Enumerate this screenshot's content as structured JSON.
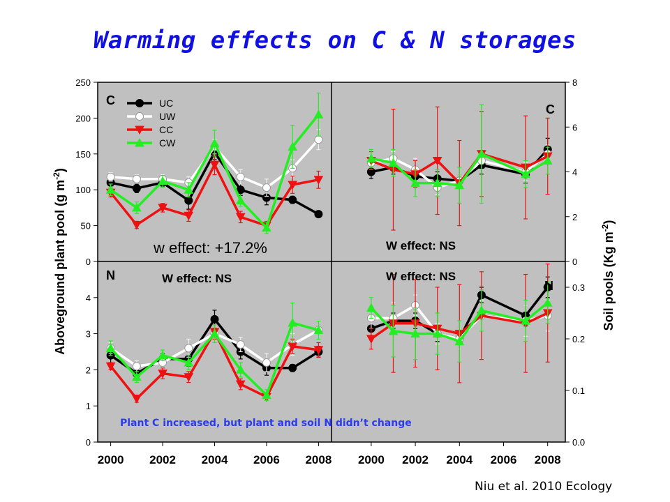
{
  "slide": {
    "title": "Warming effects on C & N storages",
    "citation": "Niu et al. 2010 Ecology",
    "note": "Plant C increased, but plant and soil N didn’t change"
  },
  "colors": {
    "UC": "#000000",
    "UW": "#ffffff",
    "CC": "#ee1111",
    "CW": "#22ee22",
    "panel_bg": "#c0c0c0",
    "title": "#1010e0",
    "note": "#2b3cf0"
  },
  "axes": {
    "left_label": "Aboveground plant pool (g m-2)",
    "right_label": "Soil pools (Kg m-2)",
    "left_top_ticks": [
      "250",
      "200",
      "150",
      "100",
      "50",
      "0"
    ],
    "left_bottom_ticks": [
      "4",
      "3",
      "2",
      "1",
      "0"
    ],
    "right_top_ticks": [
      "8",
      "6",
      "4",
      "2",
      "0"
    ],
    "right_bottom_ticks": [
      "0.3",
      "0.2",
      "0.1",
      "0.0"
    ],
    "x_ticks_left": [
      "2000",
      "2002",
      "2004",
      "2006",
      "2008"
    ],
    "x_ticks_right": [
      "2000",
      "2002",
      "2004",
      "2006",
      "2008"
    ]
  },
  "chart_data": [
    {
      "panel": "top-left",
      "type": "line",
      "label": "C",
      "annotation": "w effect: +17.2%",
      "legend": [
        "UC",
        "UW",
        "CC",
        "CW"
      ],
      "legend_position": "top-left",
      "x": [
        2000,
        2001,
        2002,
        2003,
        2004,
        2005,
        2006,
        2007,
        2008
      ],
      "ylim": [
        0,
        250
      ],
      "series": [
        {
          "name": "UC",
          "values": [
            110,
            102,
            110,
            85,
            152,
            100,
            89,
            86,
            66
          ],
          "errors": [
            8,
            6,
            6,
            12,
            10,
            8,
            10,
            5,
            4
          ]
        },
        {
          "name": "UW",
          "values": [
            118,
            115,
            115,
            110,
            160,
            118,
            103,
            130,
            170
          ],
          "errors": [
            6,
            6,
            6,
            8,
            10,
            10,
            12,
            12,
            14
          ]
        },
        {
          "name": "CC",
          "values": [
            96,
            51,
            75,
            64,
            135,
            62,
            50,
            107,
            114
          ],
          "errors": [
            6,
            5,
            6,
            8,
            14,
            8,
            6,
            12,
            12
          ]
        },
        {
          "name": "CW",
          "values": [
            100,
            75,
            112,
            100,
            165,
            85,
            47,
            160,
            205
          ],
          "errors": [
            8,
            8,
            8,
            10,
            18,
            8,
            8,
            30,
            30
          ]
        }
      ]
    },
    {
      "panel": "top-right",
      "type": "line",
      "label": "C",
      "annotation": "W effect: NS",
      "x": [
        2000,
        2001,
        2002,
        2003,
        2004,
        2005,
        2007,
        2008
      ],
      "ylim": [
        0,
        8
      ],
      "series": [
        {
          "name": "UC",
          "values": [
            4.0,
            4.2,
            3.8,
            3.7,
            3.6,
            4.3,
            3.9,
            5.0
          ],
          "errors": [
            0.3,
            0.3,
            0.3,
            0.3,
            0.3,
            0.4,
            0.4,
            0.5
          ]
        },
        {
          "name": "UW",
          "values": [
            4.4,
            4.6,
            4.1,
            3.3,
            3.6,
            4.5,
            4.0,
            4.8
          ],
          "errors": [
            0.3,
            0.3,
            0.5,
            0.3,
            0.3,
            0.4,
            0.4,
            0.4
          ]
        },
        {
          "name": "CC",
          "values": [
            4.5,
            4.1,
            3.9,
            4.5,
            3.5,
            4.8,
            4.2,
            4.7
          ],
          "errors": [
            0.4,
            2.7,
            0.6,
            2.4,
            1.9,
            1.9,
            2.3,
            1.7
          ]
        },
        {
          "name": "CW",
          "values": [
            4.6,
            4.4,
            3.5,
            3.5,
            3.4,
            4.8,
            3.9,
            4.5
          ],
          "errors": [
            0.4,
            0.6,
            0.6,
            0.6,
            0.8,
            2.2,
            0.6,
            0.6
          ]
        }
      ]
    },
    {
      "panel": "bottom-left",
      "type": "line",
      "label": "N",
      "annotation": "W effect: NS",
      "x": [
        2000,
        2001,
        2002,
        2003,
        2004,
        2005,
        2006,
        2007,
        2008
      ],
      "ylim": [
        0,
        5
      ],
      "series": [
        {
          "name": "UC",
          "values": [
            2.4,
            1.9,
            2.3,
            2.3,
            3.4,
            2.5,
            2.05,
            2.05,
            2.5
          ],
          "errors": [
            0.2,
            0.15,
            0.15,
            0.2,
            0.25,
            0.2,
            0.2,
            0.1,
            0.15
          ]
        },
        {
          "name": "UW",
          "values": [
            2.6,
            2.1,
            2.2,
            2.6,
            3.0,
            2.7,
            2.2,
            2.7,
            3.1
          ],
          "errors": [
            0.15,
            0.15,
            0.15,
            0.25,
            0.25,
            0.2,
            0.25,
            0.3,
            0.25
          ]
        },
        {
          "name": "CC",
          "values": [
            2.1,
            1.2,
            1.9,
            1.8,
            3.05,
            1.6,
            1.25,
            2.65,
            2.55
          ],
          "errors": [
            0.1,
            0.1,
            0.15,
            0.15,
            0.2,
            0.15,
            0.1,
            0.2,
            0.2
          ]
        },
        {
          "name": "CW",
          "values": [
            2.6,
            1.8,
            2.4,
            2.2,
            3.0,
            2.0,
            1.3,
            3.3,
            3.1
          ],
          "errors": [
            0.2,
            0.15,
            0.15,
            0.2,
            0.25,
            0.2,
            0.15,
            0.55,
            0.25
          ]
        }
      ]
    },
    {
      "panel": "bottom-right",
      "type": "line",
      "label": "N",
      "annotation": "W effect: NS",
      "x": [
        2000,
        2001,
        2002,
        2003,
        2004,
        2005,
        2007,
        2008
      ],
      "ylim": [
        0,
        0.35
      ],
      "series": [
        {
          "name": "UC",
          "values": [
            0.22,
            0.235,
            0.235,
            0.21,
            0.2,
            0.285,
            0.245,
            0.3
          ],
          "errors": [
            0.02,
            0.015,
            0.015,
            0.015,
            0.02,
            0.015,
            0.02,
            0.02
          ]
        },
        {
          "name": "UW",
          "values": [
            0.24,
            0.24,
            0.265,
            0.21,
            0.2,
            0.245,
            0.235,
            0.245
          ],
          "errors": [
            0.02,
            0.03,
            0.02,
            0.02,
            0.02,
            0.03,
            0.03,
            0.03
          ]
        },
        {
          "name": "CC",
          "values": [
            0.2,
            0.23,
            0.23,
            0.22,
            0.21,
            0.245,
            0.23,
            0.25
          ],
          "errors": [
            0.02,
            0.095,
            0.085,
            0.08,
            0.095,
            0.085,
            0.095,
            0.095
          ]
        },
        {
          "name": "CW",
          "values": [
            0.26,
            0.215,
            0.21,
            0.21,
            0.195,
            0.255,
            0.235,
            0.27
          ],
          "errors": [
            0.02,
            0.05,
            0.05,
            0.04,
            0.04,
            0.04,
            0.04,
            0.04
          ]
        }
      ]
    }
  ]
}
